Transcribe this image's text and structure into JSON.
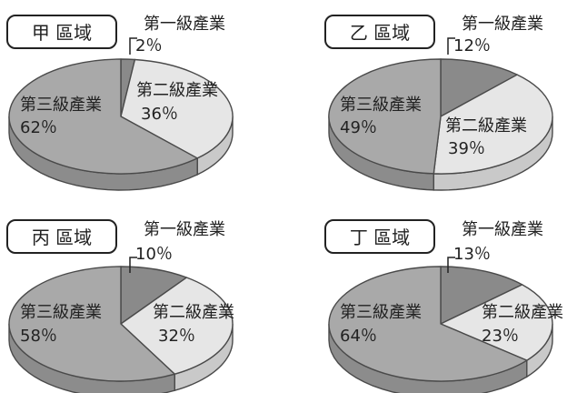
{
  "chart_data": [
    {
      "type": "pie",
      "title": "甲 區域",
      "categories": [
        "第一級產業",
        "第二級產業",
        "第三級產業"
      ],
      "values": [
        2,
        36,
        62
      ],
      "value_labels": [
        "2％",
        "36％",
        "62％"
      ]
    },
    {
      "type": "pie",
      "title": "乙 區域",
      "categories": [
        "第一級產業",
        "第二級產業",
        "第三級產業"
      ],
      "values": [
        12,
        39,
        49
      ],
      "value_labels": [
        "12％",
        "39％",
        "49％"
      ]
    },
    {
      "type": "pie",
      "title": "丙 區域",
      "categories": [
        "第一級產業",
        "第二級產業",
        "第三級產業"
      ],
      "values": [
        10,
        32,
        58
      ],
      "value_labels": [
        "10％",
        "32％",
        "58％"
      ]
    },
    {
      "type": "pie",
      "title": "丁 區域",
      "categories": [
        "第一級產業",
        "第二級產業",
        "第三級產業"
      ],
      "values": [
        13,
        23,
        64
      ],
      "value_labels": [
        "13％",
        "23％",
        "64％"
      ]
    }
  ],
  "colors": {
    "primary_sector": "#8a8a8a",
    "secondary_sector": "#e6e6e6",
    "tertiary_sector": "#a9a9a9",
    "outline": "#4a4a4a"
  }
}
